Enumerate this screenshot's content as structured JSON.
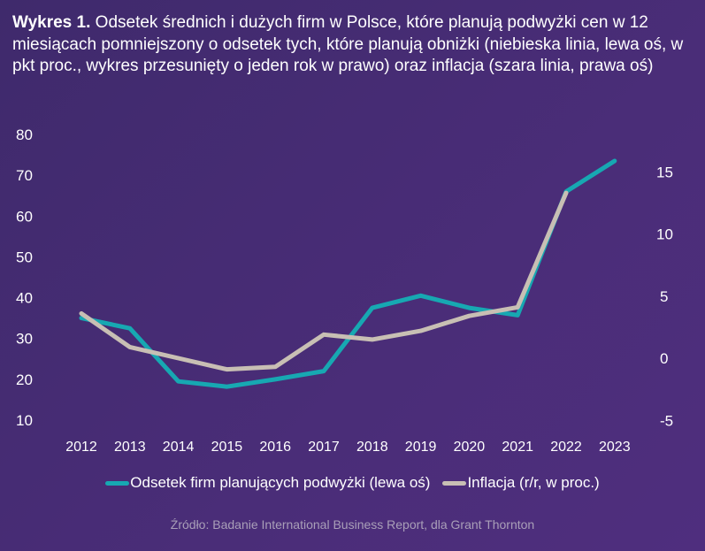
{
  "chart_data": {
    "type": "line",
    "title_bold": "Wykres 1.",
    "title": "Odsetek średnich i dużych firm w Polsce, które planują podwyżki cen w 12 miesiącach pomniejszony o odsetek tych, które planują obniżki (niebieska linia, lewa oś, w pkt proc., wykres przesunięty o jeden rok w prawo) oraz inflacja (szara linia, prawa oś)",
    "categories": [
      "2012",
      "2013",
      "2014",
      "2015",
      "2016",
      "2017",
      "2018",
      "2019",
      "2020",
      "2021",
      "2022",
      "2023"
    ],
    "y_left": {
      "range": [
        10,
        80
      ],
      "ticks": [
        "80",
        "70",
        "60",
        "50",
        "40",
        "30",
        "20",
        "10"
      ]
    },
    "y_right": {
      "range": [
        -5,
        17
      ],
      "ticks": [
        "15",
        "10",
        "5",
        "0",
        "-5"
      ]
    },
    "grid": false,
    "legend_position": "bottom",
    "series": [
      {
        "name": "Odsetek firm planujących podwyżki (lewa oś)",
        "axis": "left",
        "color": "#17a8b2",
        "values": [
          35,
          32.5,
          19.5,
          18.2,
          20,
          22,
          37.5,
          40.5,
          37.5,
          35.7,
          66,
          73.5
        ]
      },
      {
        "name": "Inflacja (r/r, w proc.)",
        "axis": "right",
        "color": "#c8bfb4",
        "values": [
          3.6,
          0.9,
          0.0,
          -0.9,
          -0.7,
          1.9,
          1.5,
          2.2,
          3.4,
          4.1,
          13.3,
          null
        ]
      }
    ],
    "source": "Źródło:  Badanie International Business Report, dla Grant Thornton"
  }
}
